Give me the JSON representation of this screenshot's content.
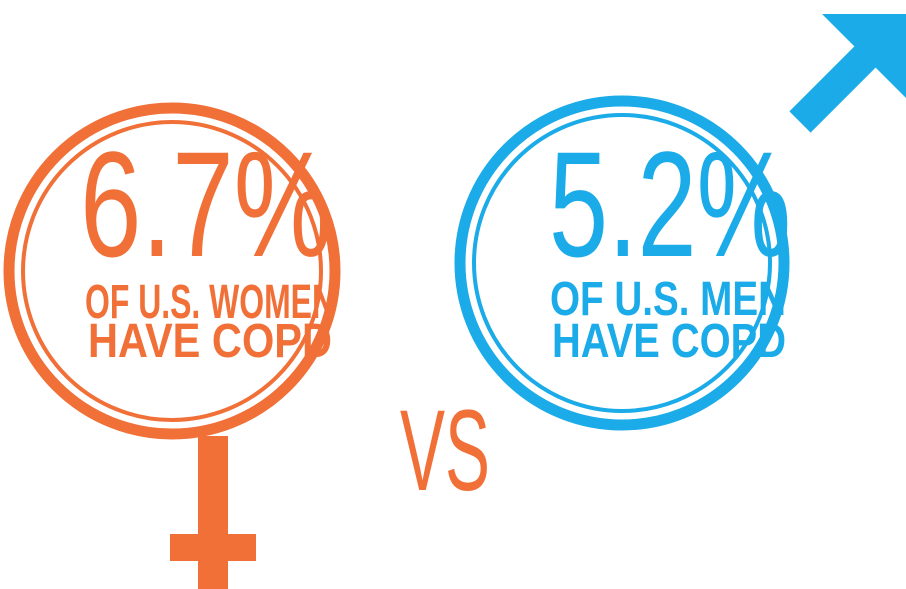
{
  "women": {
    "figure": "6.7%",
    "line1": "OF U.S. WOMEN",
    "line2": "HAVE COPD"
  },
  "men": {
    "figure": "5.2%",
    "line1": "OF U.S. MEN",
    "line2": "HAVE COPD"
  },
  "versus": "VS"
}
